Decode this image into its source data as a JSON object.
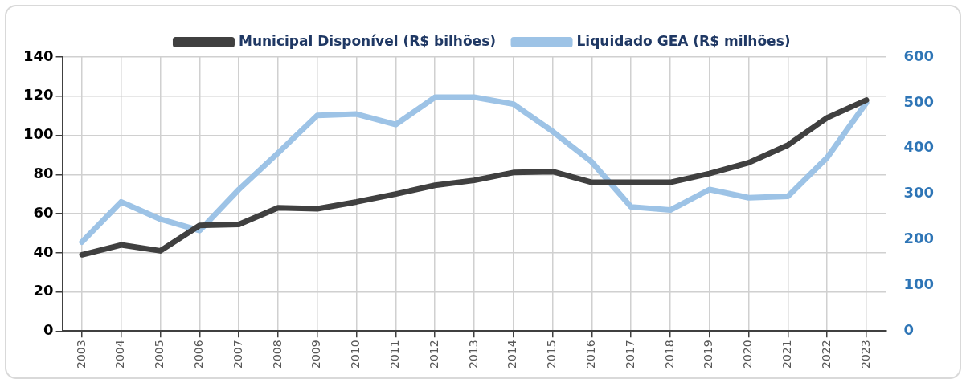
{
  "chart_data": {
    "type": "line",
    "categories": [
      "2003",
      "2004",
      "2005",
      "2006",
      "2007",
      "2008",
      "2009",
      "2010",
      "2011",
      "2012",
      "2013",
      "2014",
      "2015",
      "2016",
      "2017",
      "2018",
      "2019",
      "2020",
      "2021",
      "2022",
      "2023"
    ],
    "series": [
      {
        "name": "Municipal Disponível (R$ bilhões)",
        "color": "#404040",
        "values": [
          39,
          44,
          41,
          54,
          54.5,
          63,
          62.5,
          66,
          70,
          74.5,
          77,
          81,
          81.5,
          76,
          76,
          76,
          80.5,
          86,
          95,
          109,
          118
        ]
      },
      {
        "name": "Liquidado GEA (R$ milhões)",
        "color": "#9dc3e6",
        "axis": "y2",
        "values": [
          195,
          283,
          245,
          220,
          310,
          390,
          472,
          475,
          452,
          512,
          512,
          497,
          437,
          370,
          272,
          265,
          310,
          292,
          295,
          380,
          500
        ]
      }
    ],
    "ylim": [
      0,
      140
    ],
    "yticks": [
      0,
      20,
      40,
      60,
      80,
      100,
      120,
      140
    ],
    "y2lim": [
      0,
      600
    ],
    "y2ticks": [
      0,
      100,
      200,
      300,
      400,
      500,
      600
    ],
    "grid": true,
    "legend": "top",
    "marker": "none",
    "line_style": "solid"
  }
}
